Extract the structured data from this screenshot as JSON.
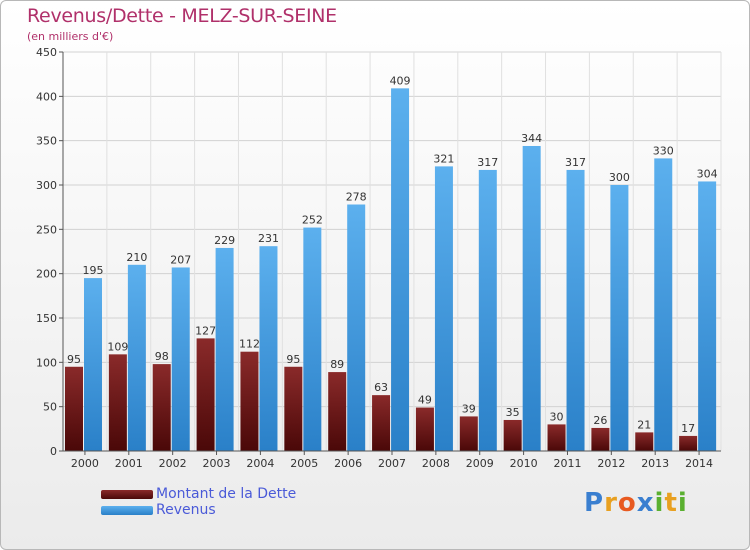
{
  "header": {
    "title": "Revenus/Dette - MELZ-SUR-SEINE",
    "subtitle": "(en milliers d'€)"
  },
  "chart_data": {
    "type": "bar",
    "categories": [
      "2000",
      "2001",
      "2002",
      "2003",
      "2004",
      "2005",
      "2006",
      "2007",
      "2008",
      "2009",
      "2010",
      "2011",
      "2012",
      "2013",
      "2014"
    ],
    "series": [
      {
        "name": "Montant de la Dette",
        "color": "#7a1a1a",
        "values": [
          95,
          109,
          98,
          127,
          112,
          95,
          89,
          63,
          49,
          39,
          35,
          30,
          26,
          21,
          17
        ]
      },
      {
        "name": "Revenus",
        "color": "#4aa3e8",
        "values": [
          195,
          210,
          207,
          229,
          231,
          252,
          278,
          409,
          321,
          317,
          344,
          317,
          300,
          330,
          304
        ]
      }
    ],
    "ylim": [
      0,
      450
    ],
    "yticks": [
      0,
      50,
      100,
      150,
      200,
      250,
      300,
      350,
      400,
      450
    ],
    "grid": true,
    "legend": "bottom-left"
  },
  "logo": {
    "letters": [
      "P",
      "r",
      "o",
      "x",
      "i",
      "t",
      "i"
    ],
    "colors": [
      "#3a7fd0",
      "#e8a020",
      "#e85a20",
      "#3a7fd0",
      "#5ab030",
      "#e8a020",
      "#5ab030"
    ]
  }
}
